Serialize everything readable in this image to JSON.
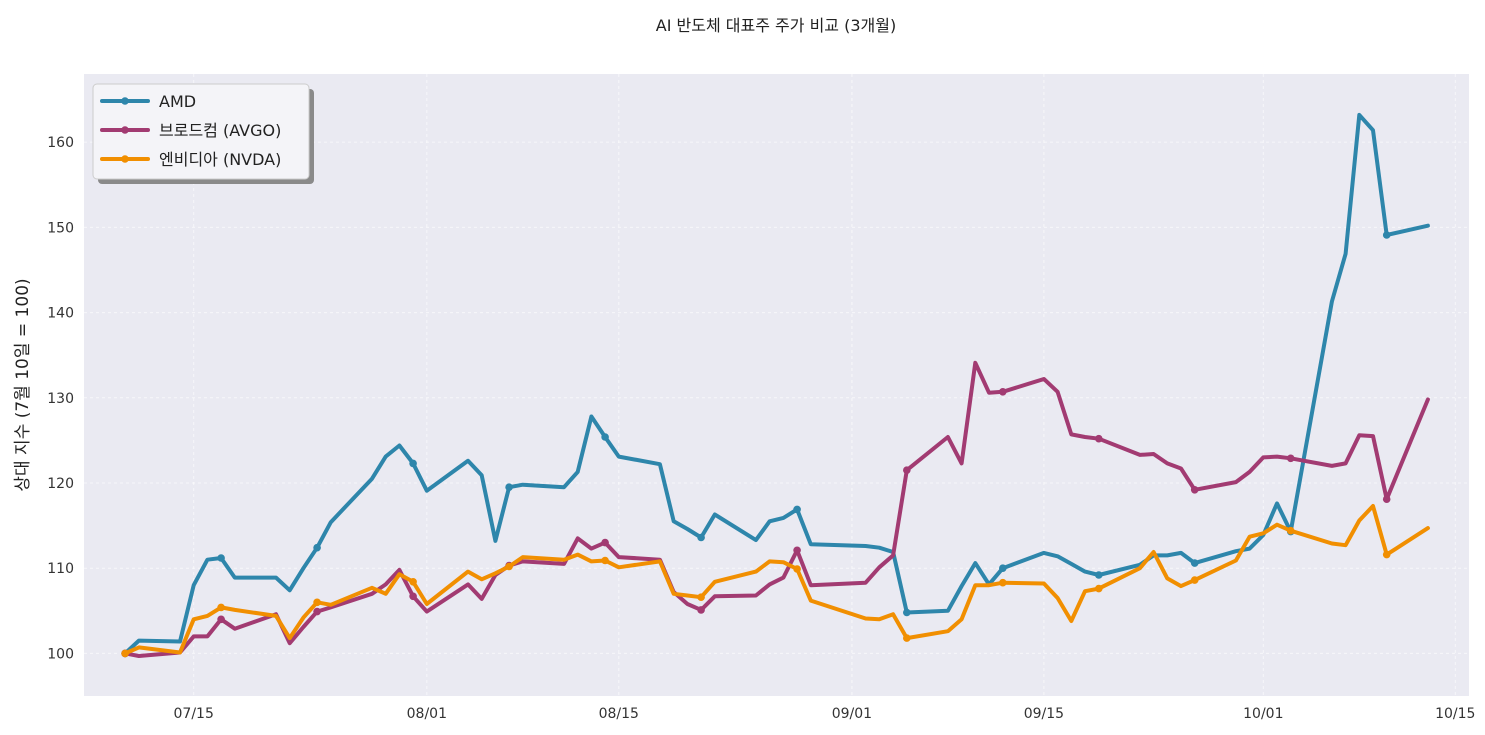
{
  "chart_data": {
    "type": "line",
    "title": "AI 반도체 대표주 주가 비교 (3개월)",
    "xlabel": "",
    "ylabel": "상대 지수 (7월 10일 = 100)",
    "x_range": [
      "2025-07-07",
      "2025-10-16"
    ],
    "ylim": [
      95,
      168
    ],
    "x_ticks": [
      {
        "date": "2025-07-15",
        "label": "07/15"
      },
      {
        "date": "2025-08-01",
        "label": "08/01"
      },
      {
        "date": "2025-08-15",
        "label": "08/15"
      },
      {
        "date": "2025-09-01",
        "label": "09/01"
      },
      {
        "date": "2025-09-15",
        "label": "09/15"
      },
      {
        "date": "2025-10-01",
        "label": "10/01"
      },
      {
        "date": "2025-10-15",
        "label": "10/15"
      }
    ],
    "y_ticks": [
      100,
      110,
      120,
      130,
      140,
      150,
      160
    ],
    "grid": true,
    "legend_position": "top-left",
    "x": [
      "2025-07-10",
      "2025-07-11",
      "2025-07-14",
      "2025-07-15",
      "2025-07-16",
      "2025-07-17",
      "2025-07-18",
      "2025-07-21",
      "2025-07-22",
      "2025-07-23",
      "2025-07-24",
      "2025-07-25",
      "2025-07-28",
      "2025-07-29",
      "2025-07-30",
      "2025-07-31",
      "2025-08-01",
      "2025-08-04",
      "2025-08-05",
      "2025-08-06",
      "2025-08-07",
      "2025-08-08",
      "2025-08-11",
      "2025-08-12",
      "2025-08-13",
      "2025-08-14",
      "2025-08-15",
      "2025-08-18",
      "2025-08-19",
      "2025-08-20",
      "2025-08-21",
      "2025-08-22",
      "2025-08-25",
      "2025-08-26",
      "2025-08-27",
      "2025-08-28",
      "2025-08-29",
      "2025-09-02",
      "2025-09-03",
      "2025-09-04",
      "2025-09-05",
      "2025-09-08",
      "2025-09-09",
      "2025-09-10",
      "2025-09-11",
      "2025-09-12",
      "2025-09-15",
      "2025-09-16",
      "2025-09-17",
      "2025-09-18",
      "2025-09-19",
      "2025-09-22",
      "2025-09-23",
      "2025-09-24",
      "2025-09-25",
      "2025-09-26",
      "2025-09-29",
      "2025-09-30",
      "2025-10-01",
      "2025-10-02",
      "2025-10-03",
      "2025-10-06",
      "2025-10-07",
      "2025-10-08",
      "2025-10-09",
      "2025-10-10",
      "2025-10-13"
    ],
    "series": [
      {
        "name": "AMD",
        "color": "#2e86ab",
        "values": [
          100.0,
          101.5,
          101.4,
          108.0,
          111.0,
          111.2,
          108.9,
          108.9,
          107.4,
          110.0,
          112.4,
          115.4,
          120.5,
          123.1,
          124.4,
          122.3,
          119.1,
          122.6,
          120.9,
          113.2,
          119.5,
          119.8,
          119.5,
          121.3,
          127.8,
          125.4,
          123.1,
          122.2,
          115.5,
          114.6,
          113.6,
          116.3,
          113.3,
          115.5,
          115.9,
          116.9,
          112.8,
          112.6,
          112.4,
          111.9,
          104.8,
          105.0,
          107.9,
          110.6,
          108.1,
          110.0,
          111.8,
          111.4,
          110.5,
          109.6,
          109.2,
          110.4,
          111.5,
          111.5,
          111.8,
          110.6,
          112.0,
          112.3,
          113.9,
          117.6,
          114.3,
          141.3,
          146.9,
          163.2,
          161.4,
          149.1,
          150.2
        ]
      },
      {
        "name": "브로드컴 (AVGO)",
        "color": "#a23b72",
        "values": [
          100.0,
          99.7,
          100.1,
          102.0,
          102.0,
          104.0,
          102.9,
          104.6,
          101.2,
          103.1,
          104.9,
          105.4,
          107.0,
          108.1,
          109.8,
          106.7,
          104.9,
          108.1,
          106.4,
          109.2,
          110.3,
          110.8,
          110.5,
          113.5,
          112.3,
          113.0,
          111.3,
          111.0,
          107.2,
          105.8,
          105.1,
          106.7,
          106.8,
          108.1,
          108.9,
          112.1,
          108.0,
          108.3,
          110.1,
          111.5,
          121.5,
          125.4,
          122.3,
          134.1,
          130.6,
          130.7,
          132.2,
          130.7,
          125.7,
          125.4,
          125.2,
          123.3,
          123.4,
          122.3,
          121.7,
          119.2,
          120.1,
          121.3,
          123.0,
          123.1,
          122.9,
          122.0,
          122.3,
          125.6,
          125.5,
          118.1,
          129.8
        ]
      },
      {
        "name": "엔비디아 (NVDA)",
        "color": "#f18f01",
        "values": [
          100.0,
          100.7,
          100.1,
          104.0,
          104.4,
          105.4,
          105.1,
          104.4,
          101.8,
          104.2,
          106.0,
          105.7,
          107.7,
          107.0,
          109.3,
          108.4,
          105.8,
          109.6,
          108.7,
          109.4,
          110.2,
          111.3,
          111.0,
          111.6,
          110.8,
          110.9,
          110.1,
          110.8,
          107.0,
          106.8,
          106.6,
          108.4,
          109.6,
          110.8,
          110.7,
          109.9,
          106.2,
          104.1,
          104.0,
          104.6,
          101.8,
          102.6,
          104.0,
          108.0,
          108.0,
          108.3,
          108.2,
          106.5,
          103.8,
          107.3,
          107.6,
          110.0,
          111.9,
          108.8,
          107.9,
          108.6,
          110.9,
          113.7,
          114.1,
          115.1,
          114.4,
          112.9,
          112.7,
          115.6,
          117.3,
          111.6,
          114.7
        ]
      }
    ]
  }
}
